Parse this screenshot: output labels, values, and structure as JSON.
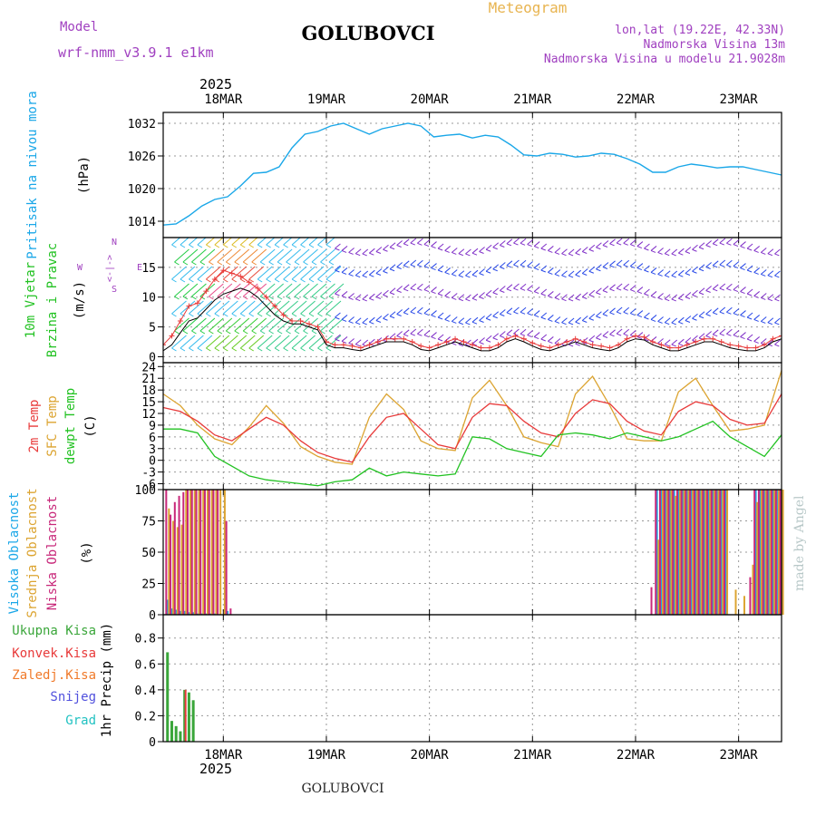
{
  "header": {
    "model_label": "Model",
    "model_name": "wrf-nmm_v3.9.1 e1km",
    "station": "GOLUBOVCI",
    "product": "Meteogram",
    "location": "lon,lat (19.22E, 42.33N)",
    "elevation": "Nadmorska Visina 13m",
    "model_elevation": "Nadmorska Visina u modelu 21.9028m",
    "credit": "made by Angel",
    "footer_station": "GOLUBOVCI"
  },
  "colors": {
    "pressure": "#1aa7e8",
    "temp2m": "#e83a3a",
    "sfc_temp": "#dca431",
    "dewpoint": "#22c222",
    "wind_speed": "#000000",
    "gust": "#e83a3a",
    "high_cloud": "#1aa7e8",
    "mid_cloud": "#dca431",
    "low_cloud": "#c8287a",
    "total_precip": "#3aa63a",
    "conv_precip": "#e83a3a",
    "frz_precip": "#f07a2a",
    "snow": "#5050dd",
    "graupel": "#22c2c2",
    "purple_text": "#a040c0",
    "title_orange": "#e8b450"
  },
  "time_axis": {
    "year": "2025",
    "days": [
      "18MAR",
      "19MAR",
      "20MAR",
      "21MAR",
      "22MAR",
      "23MAR"
    ],
    "start_hour": -14,
    "end_hour": 130
  },
  "chart_data": [
    {
      "type": "line",
      "panel": "pressure",
      "ylabel": "Pritisak na nivou mora",
      "unit": "(hPa)",
      "yticks": [
        "1014",
        "1020",
        "1026",
        "1032"
      ],
      "ylim": [
        1011,
        1034
      ],
      "series": [
        {
          "x": [
            -14,
            -11,
            -8,
            -5,
            -2,
            1,
            4,
            7,
            10,
            13,
            16,
            19,
            22,
            25,
            28,
            31,
            34,
            37,
            40,
            43,
            46,
            49,
            52,
            55,
            58,
            61,
            64,
            67,
            70,
            73,
            76,
            79,
            82,
            85,
            88,
            91,
            94,
            97,
            100,
            103,
            106,
            109,
            112,
            115,
            118,
            121,
            124,
            127,
            130
          ],
          "values": [
            1013.3,
            1013.5,
            1015.0,
            1016.8,
            1018.0,
            1018.5,
            1020.5,
            1022.8,
            1023.0,
            1024.0,
            1027.5,
            1030.0,
            1030.5,
            1031.5,
            1032.0,
            1031.0,
            1030.0,
            1031.0,
            1031.5,
            1032.0,
            1031.5,
            1029.5,
            1029.8,
            1030.0,
            1029.3,
            1029.8,
            1029.5,
            1028.0,
            1026.2,
            1026.0,
            1026.5,
            1026.3,
            1025.8,
            1026.0,
            1026.5,
            1026.3,
            1025.5,
            1024.5,
            1023.0,
            1023.0,
            1024.0,
            1024.5,
            1024.2,
            1023.8,
            1024.0,
            1024.0,
            1023.5,
            1023.0,
            1022.5
          ]
        }
      ]
    },
    {
      "type": "line",
      "panel": "wind",
      "ylabel": "10m Vjetar",
      "ylabel2": "Brzina i Pravac",
      "unit": "(m/s)",
      "legend_symbols": [
        "N",
        "<-|->",
        "E",
        "W",
        "S"
      ],
      "yticks": [
        "0",
        "5",
        "10",
        "15"
      ],
      "ylim": [
        -1,
        20
      ],
      "series": [
        {
          "name": "speed",
          "x": [
            -14,
            -12,
            -10,
            -8,
            -6,
            -4,
            -2,
            0,
            2,
            4,
            6,
            8,
            10,
            12,
            14,
            16,
            18,
            20,
            22,
            24,
            26,
            28,
            30,
            32,
            34,
            36,
            38,
            40,
            42,
            44,
            46,
            48,
            50,
            52,
            54,
            56,
            58,
            60,
            62,
            64,
            66,
            68,
            70,
            72,
            74,
            76,
            78,
            80,
            82,
            84,
            86,
            88,
            90,
            92,
            94,
            96,
            98,
            100,
            102,
            104,
            106,
            108,
            110,
            112,
            114,
            116,
            118,
            120,
            122,
            124,
            126,
            128,
            130
          ],
          "values": [
            1.0,
            2.0,
            4.0,
            6.0,
            6.5,
            8.0,
            9.5,
            10.5,
            11.0,
            11.5,
            11.0,
            10.0,
            8.5,
            7.0,
            6.0,
            5.5,
            5.5,
            5.0,
            4.5,
            2.0,
            1.5,
            1.5,
            1.2,
            1.0,
            1.5,
            2.0,
            2.5,
            2.5,
            2.5,
            2.0,
            1.2,
            1.0,
            1.5,
            2.0,
            2.5,
            2.0,
            1.5,
            1.0,
            1.0,
            1.5,
            2.5,
            3.0,
            2.5,
            1.8,
            1.2,
            1.0,
            1.5,
            2.0,
            2.5,
            2.0,
            1.5,
            1.2,
            1.0,
            1.5,
            2.5,
            3.0,
            2.8,
            2.0,
            1.5,
            1.0,
            1.0,
            1.5,
            2.0,
            2.5,
            2.5,
            2.0,
            1.5,
            1.2,
            1.0,
            1.0,
            1.5,
            2.5,
            3.0
          ]
        },
        {
          "name": "gust",
          "x": [
            -14,
            -12,
            -10,
            -8,
            -6,
            -4,
            -2,
            0,
            2,
            4,
            6,
            8,
            10,
            12,
            14,
            16,
            18,
            20,
            22,
            24,
            26,
            28,
            30,
            32,
            34,
            36,
            38,
            40,
            42,
            44,
            46,
            48,
            50,
            52,
            54,
            56,
            58,
            60,
            62,
            64,
            66,
            68,
            70,
            72,
            74,
            76,
            78,
            80,
            82,
            84,
            86,
            88,
            90,
            92,
            94,
            96,
            98,
            100,
            102,
            104,
            106,
            108,
            110,
            112,
            114,
            116,
            118,
            120,
            122,
            124,
            126,
            128,
            130
          ],
          "values": [
            2.0,
            3.5,
            6.0,
            8.5,
            9.0,
            11.0,
            13.0,
            14.5,
            14.0,
            13.5,
            12.5,
            11.5,
            10.0,
            8.5,
            7.0,
            6.0,
            6.0,
            5.5,
            5.0,
            2.5,
            2.0,
            2.0,
            1.8,
            1.5,
            2.0,
            2.5,
            3.0,
            3.0,
            3.0,
            2.5,
            1.8,
            1.5,
            2.0,
            2.5,
            3.0,
            2.5,
            2.0,
            1.5,
            1.5,
            2.0,
            3.0,
            3.5,
            3.0,
            2.3,
            1.8,
            1.5,
            2.0,
            2.5,
            3.0,
            2.5,
            2.0,
            1.8,
            1.5,
            2.0,
            3.0,
            3.5,
            3.3,
            2.5,
            2.0,
            1.5,
            1.5,
            2.0,
            2.5,
            3.0,
            3.0,
            2.5,
            2.0,
            1.8,
            1.5,
            1.5,
            2.0,
            3.0,
            3.5
          ]
        }
      ]
    },
    {
      "type": "line",
      "panel": "temperature",
      "ylabel": "2m Temp",
      "ylabel2": "SFC Temp",
      "ylabel3": "dewpt Temp",
      "unit": "(C)",
      "yticks": [
        "-6",
        "-3",
        "0",
        "3",
        "6",
        "9",
        "12",
        "15",
        "18",
        "21",
        "24"
      ],
      "ylim": [
        -7.5,
        25
      ],
      "series": [
        {
          "name": "2m",
          "x": [
            -14,
            -10,
            -6,
            -2,
            2,
            6,
            10,
            14,
            18,
            22,
            26,
            30,
            34,
            38,
            42,
            46,
            50,
            54,
            58,
            62,
            66,
            70,
            74,
            78,
            82,
            86,
            90,
            94,
            98,
            102,
            106,
            110,
            114,
            118,
            122,
            126,
            130
          ],
          "values": [
            13.5,
            12.5,
            10.0,
            6.5,
            5.0,
            8.0,
            11.0,
            9.0,
            5.0,
            2.0,
            0.5,
            -0.5,
            6.0,
            11.0,
            12.0,
            8.0,
            4.0,
            3.0,
            11.0,
            14.5,
            14.0,
            10.0,
            7.0,
            6.0,
            12.0,
            15.5,
            14.5,
            10.0,
            7.5,
            6.5,
            12.5,
            15.0,
            14.0,
            10.5,
            9.0,
            9.5,
            17.0
          ]
        },
        {
          "name": "sfc",
          "x": [
            -14,
            -10,
            -6,
            -2,
            2,
            6,
            10,
            14,
            18,
            22,
            26,
            30,
            34,
            38,
            42,
            46,
            50,
            54,
            58,
            62,
            66,
            70,
            74,
            78,
            82,
            86,
            90,
            94,
            98,
            102,
            106,
            110,
            114,
            118,
            122,
            126,
            130
          ],
          "values": [
            17.0,
            14.0,
            9.0,
            5.5,
            4.0,
            8.5,
            14.0,
            9.5,
            3.5,
            1.0,
            -0.5,
            -1.0,
            11.0,
            17.0,
            13.0,
            5.0,
            3.0,
            2.5,
            16.0,
            20.5,
            14.0,
            6.0,
            4.5,
            3.5,
            17.0,
            21.5,
            14.0,
            5.5,
            5.0,
            5.0,
            17.5,
            21.0,
            14.0,
            7.5,
            8.0,
            9.0,
            23.0
          ]
        },
        {
          "name": "dewpoint",
          "x": [
            -14,
            -10,
            -6,
            -2,
            2,
            6,
            10,
            14,
            18,
            22,
            26,
            30,
            34,
            38,
            42,
            46,
            50,
            54,
            58,
            62,
            66,
            70,
            74,
            78,
            82,
            86,
            90,
            94,
            98,
            102,
            106,
            110,
            114,
            118,
            122,
            126,
            130
          ],
          "values": [
            8.0,
            8.0,
            7.0,
            1.0,
            -1.5,
            -4.0,
            -5.0,
            -5.5,
            -6.0,
            -6.5,
            -5.5,
            -5.0,
            -2.0,
            -4.0,
            -3.0,
            -3.5,
            -4.0,
            -3.5,
            6.0,
            5.5,
            3.0,
            2.0,
            1.0,
            6.5,
            7.0,
            6.5,
            5.5,
            7.0,
            6.0,
            5.0,
            6.0,
            8.0,
            10.0,
            6.0,
            3.5,
            1.0,
            6.5
          ]
        }
      ]
    },
    {
      "type": "bar",
      "panel": "clouds",
      "ylabel": "Visoka Oblacnost",
      "ylabel2": "Srednja Oblacnost",
      "ylabel3": "Niska Oblacnost",
      "unit": "(%)",
      "yticks": [
        "0",
        "25",
        "50",
        "75",
        "100"
      ],
      "ylim": [
        0,
        100
      ],
      "series": [
        {
          "name": "high",
          "x": [
            -13,
            -12,
            -11,
            -10,
            -9,
            -8,
            -7,
            -6,
            -5,
            -4,
            -3,
            -2,
            1,
            101,
            102,
            103,
            104,
            105,
            106,
            107,
            108,
            109,
            110,
            111,
            112,
            113,
            114,
            115,
            116,
            117,
            124,
            125,
            126,
            127,
            128,
            129,
            130
          ],
          "values": [
            12,
            5,
            4,
            3,
            3,
            2,
            2,
            1,
            1,
            1,
            1,
            1,
            3,
            100,
            100,
            100,
            100,
            100,
            100,
            100,
            100,
            100,
            100,
            100,
            100,
            100,
            100,
            100,
            100,
            100,
            100,
            100,
            100,
            100,
            100,
            100,
            100
          ]
        },
        {
          "name": "mid",
          "x": [
            -13,
            -12,
            -11,
            -10,
            -9,
            -8,
            -7,
            -6,
            -5,
            -4,
            -3,
            -2,
            -1,
            0,
            101,
            102,
            103,
            104,
            105,
            106,
            107,
            108,
            109,
            110,
            111,
            112,
            113,
            114,
            115,
            116,
            117,
            119,
            121,
            123,
            124,
            125,
            126,
            127,
            128,
            129,
            130
          ],
          "values": [
            85,
            75,
            70,
            72,
            100,
            100,
            100,
            100,
            100,
            100,
            100,
            100,
            100,
            100,
            60,
            100,
            100,
            100,
            95,
            100,
            100,
            100,
            100,
            100,
            100,
            100,
            100,
            100,
            100,
            100,
            100,
            20,
            15,
            40,
            90,
            100,
            100,
            100,
            100,
            100,
            100
          ]
        },
        {
          "name": "low",
          "x": [
            -13,
            -12,
            -11,
            -10,
            -9,
            -8,
            -7,
            -6,
            -5,
            -4,
            -3,
            -2,
            -1,
            1,
            2,
            100,
            101,
            102,
            103,
            104,
            105,
            106,
            107,
            108,
            109,
            110,
            111,
            112,
            113,
            114,
            115,
            116,
            117,
            123,
            124,
            125,
            126,
            127,
            128,
            129,
            130
          ],
          "values": [
            100,
            80,
            90,
            95,
            98,
            100,
            100,
            100,
            100,
            100,
            100,
            100,
            100,
            75,
            5,
            22,
            100,
            100,
            100,
            100,
            100,
            100,
            100,
            100,
            100,
            100,
            100,
            100,
            100,
            100,
            100,
            100,
            100,
            30,
            100,
            100,
            100,
            100,
            100,
            100,
            100
          ]
        }
      ]
    },
    {
      "type": "bar",
      "panel": "precipitation",
      "ylabel": "1hr Precip",
      "unit": "(mm)",
      "legend": [
        "Ukupna Kisa",
        "Konvek.Kisa",
        "Zaledj.Kisa",
        "Snijeg",
        "Grad"
      ],
      "yticks": [
        "0",
        "0.2",
        "0.4",
        "0.6",
        "0.8"
      ],
      "ylim": [
        0,
        0.98
      ],
      "series": [
        {
          "name": "total",
          "x": [
            -13,
            -12,
            -11,
            -10,
            -9,
            -8,
            -7
          ],
          "values": [
            0.69,
            0.16,
            0.12,
            0.08,
            0.4,
            0.38,
            0.32
          ]
        },
        {
          "name": "convective",
          "x": [
            -9
          ],
          "values": [
            0.4
          ]
        }
      ]
    }
  ]
}
